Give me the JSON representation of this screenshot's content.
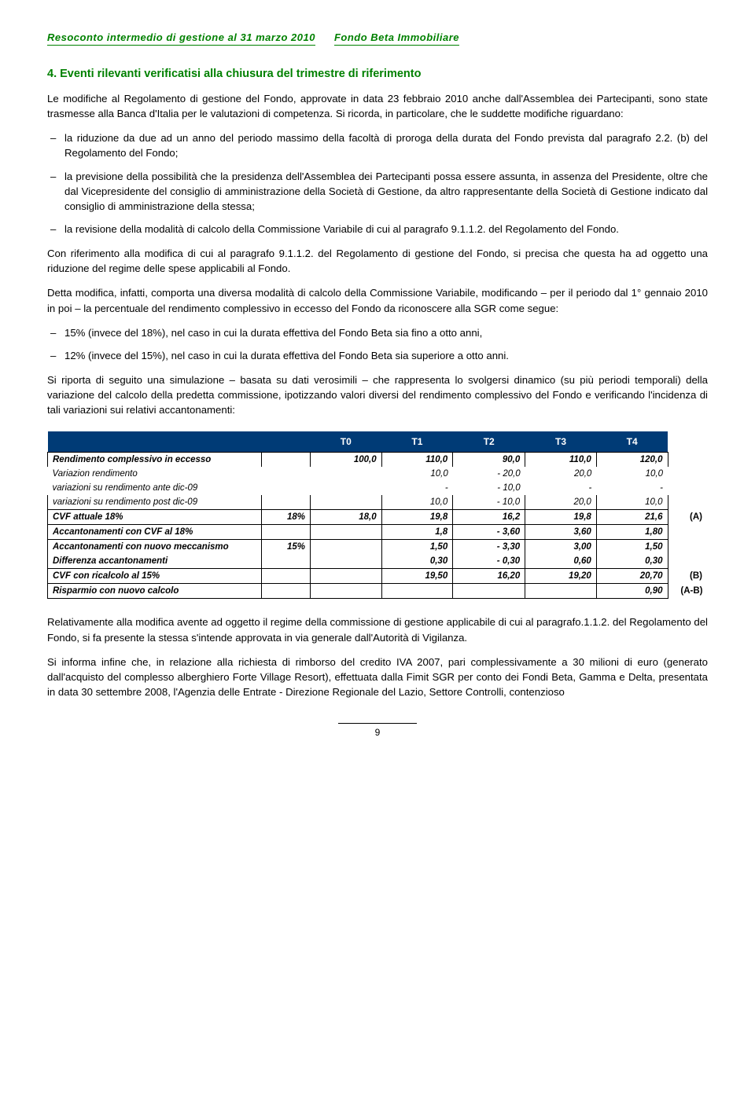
{
  "header": {
    "left": "Resoconto intermedio di gestione al 31 marzo 2010",
    "right": "Fondo Beta Immobiliare"
  },
  "section_title": "4. Eventi rilevanti verificatisi alla chiusura del trimestre di riferimento",
  "p1": "Le modifiche al Regolamento di gestione del Fondo, approvate in data 23 febbraio 2010 anche dall'Assemblea dei Partecipanti, sono state trasmesse alla Banca d'Italia per le valutazioni di competenza. Si ricorda, in particolare, che le suddette modifiche riguardano:",
  "bullets1": [
    "la riduzione da due ad un anno del periodo massimo della facoltà di proroga della durata del Fondo prevista dal paragrafo 2.2. (b) del Regolamento del Fondo;",
    "la previsione della possibilità che la presidenza dell'Assemblea dei Partecipanti possa essere assunta, in assenza del Presidente, oltre che dal Vicepresidente del consiglio di amministrazione della Società di Gestione, da altro rappresentante della Società di Gestione indicato dal consiglio di amministrazione della stessa;",
    "la revisione della modalità di calcolo della Commissione Variabile di cui al paragrafo 9.1.1.2. del Regolamento del Fondo."
  ],
  "p2": "Con riferimento alla modifica di cui al paragrafo 9.1.1.2. del Regolamento di gestione del Fondo, si precisa che questa ha ad oggetto una riduzione del regime delle spese applicabili al Fondo.",
  "p3": "Detta modifica, infatti, comporta una diversa modalità di calcolo della Commissione Variabile, modificando – per il periodo dal 1° gennaio 2010 in poi – la percentuale del rendimento complessivo in eccesso del Fondo da riconoscere alla SGR come segue:",
  "bullets2": [
    "15% (invece del 18%), nel caso in cui la durata effettiva del Fondo Beta sia fino a otto anni,",
    "12% (invece del 15%), nel caso in cui la durata effettiva del Fondo Beta sia superiore a otto anni."
  ],
  "p4": "Si riporta di seguito una simulazione – basata su dati verosimili – che rappresenta lo svolgersi dinamico (su più periodi temporali) della variazione del calcolo della predetta commissione, ipotizzando valori diversi del rendimento complessivo del Fondo e verificando l'incidenza di tali variazioni sui relativi accantonamenti:",
  "table": {
    "headers": [
      "",
      "",
      "T0",
      "T1",
      "T2",
      "T3",
      "T4",
      ""
    ],
    "rows": [
      {
        "style": "box-top bold",
        "cells": [
          "Rendimento complessivo in eccesso",
          "",
          "100,0",
          "110,0",
          "90,0",
          "110,0",
          "120,0",
          ""
        ]
      },
      {
        "style": "",
        "cells": [
          "Variazion rendimento",
          "",
          "",
          "10,0",
          "-          20,0",
          "20,0",
          "10,0",
          ""
        ]
      },
      {
        "style": "",
        "cells": [
          "variazioni su rendimento ante dic-09",
          "",
          "",
          "-",
          "-          10,0",
          "-",
          "-",
          ""
        ]
      },
      {
        "style": "box-bot",
        "cells": [
          "variazioni su rendimento post dic-09",
          "",
          "",
          "10,0",
          "-          10,0",
          "20,0",
          "10,0",
          ""
        ]
      },
      {
        "style": "sp box bold",
        "cells": [
          "CVF attuale 18%",
          "18%",
          "18,0",
          "19,8",
          "16,2",
          "19,8",
          "21,6",
          "(A)"
        ]
      },
      {
        "style": "sp box bold",
        "cells": [
          "Accantonamenti con CVF al 18%",
          "",
          "",
          "1,8",
          "-          3,60",
          "3,60",
          "1,80",
          ""
        ]
      },
      {
        "style": "sp box-top bold",
        "cells": [
          "Accantonamenti con nuovo meccanismo",
          "15%",
          "",
          "1,50",
          "-          3,30",
          "3,00",
          "1,50",
          ""
        ]
      },
      {
        "style": "box-bot bold",
        "cells": [
          "Differenza accantonamenti",
          "",
          "",
          "0,30",
          "-          0,30",
          "0,60",
          "0,30",
          ""
        ]
      },
      {
        "style": "sp box bold",
        "cells": [
          "CVF con ricalcolo al 15%",
          "",
          "",
          "19,50",
          "16,20",
          "19,20",
          "20,70",
          "(B)"
        ]
      },
      {
        "style": "sp box bold",
        "cells": [
          "Risparmio con nuovo calcolo",
          "",
          "",
          "",
          "",
          "",
          "0,90",
          "(A-B)"
        ]
      }
    ]
  },
  "p5": "Relativamente alla modifica avente ad oggetto il regime della commissione di gestione applicabile di cui al paragrafo.1.1.2. del Regolamento del Fondo, si fa presente la stessa s'intende approvata in via generale dall'Autorità di Vigilanza.",
  "p6": "Si informa infine che, in relazione alla richiesta di rimborso del credito IVA 2007, pari complessivamente a 30 milioni di euro (generato dall'acquisto del complesso alberghiero Forte Village Resort), effettuata dalla Fimit SGR per conto dei Fondi Beta, Gamma e Delta, presentata in data 30 settembre 2008, l'Agenzia delle Entrate - Direzione Regionale del Lazio, Settore Controlli, contenzioso",
  "page_number": "9"
}
